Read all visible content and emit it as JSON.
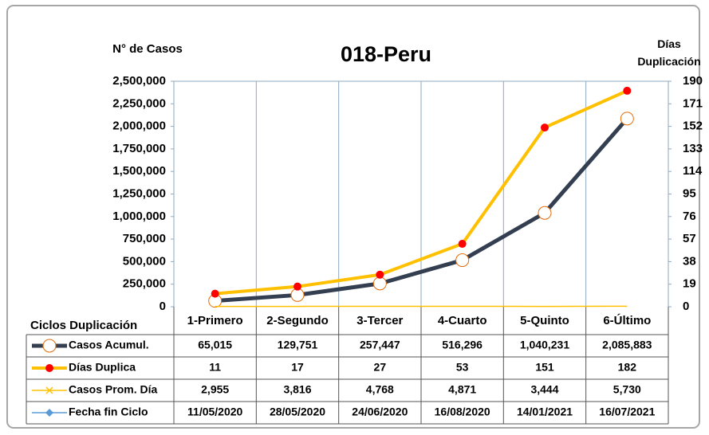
{
  "chart_data": {
    "type": "line",
    "title": "018-Peru",
    "y_label": "N° de Casos",
    "y2_label": "Días Duplicación",
    "table_label": "Ciclos Duplicación",
    "categories": [
      "1-Primero",
      "2-Segundo",
      "3-Tercer",
      "4-Cuarto",
      "5-Quinto",
      "6-Último"
    ],
    "series": [
      {
        "name": "Casos Acumul.",
        "color": "#333f50",
        "axis": "y",
        "values": [
          65015,
          129751,
          257447,
          516296,
          1040231,
          2085883
        ],
        "value_labels": [
          "65,015",
          "129,751",
          "257,447",
          "516,296",
          "1,040,231",
          "2,085,883"
        ]
      },
      {
        "name": "Días Duplica",
        "color": "#ffc000",
        "axis": "y2",
        "values": [
          11,
          17,
          27,
          53,
          151,
          182
        ]
      },
      {
        "name": "Casos Prom. Día",
        "color": "#ffc000",
        "axis": "y",
        "values": [
          2955,
          3816,
          4768,
          4871,
          3444,
          5730
        ],
        "value_labels": [
          "2,955",
          "3,816",
          "4,768",
          "4,871",
          "3,444",
          "5,730"
        ]
      },
      {
        "name": "Fecha fin Ciclo",
        "color": "#5b9bd5",
        "values": [
          "11/05/2020",
          "28/05/2020",
          "24/06/2020",
          "16/08/2020",
          "14/01/2021",
          "16/07/2021"
        ]
      }
    ],
    "ylim": [
      0,
      2500000
    ],
    "yticks": [
      0,
      {
        "value": 250000,
        "label": "250,000"
      },
      {
        "value": 500000,
        "label": "500,000"
      },
      {
        "value": 750000,
        "label": "750,000"
      },
      {
        "value": 1000000,
        "label": "1,000,000"
      },
      {
        "value": 1250000,
        "label": "1,250,000"
      },
      {
        "value": 1500000,
        "label": "1,500,000"
      },
      {
        "value": 1750000,
        "label": "1,750,000"
      },
      {
        "value": 2000000,
        "label": "2,000,000"
      },
      {
        "value": 2250000,
        "label": "2,250,000"
      },
      {
        "value": 2500000,
        "label": "2,500,000"
      }
    ],
    "y2lim": [
      0,
      190
    ],
    "y2ticks": [
      0,
      19,
      38,
      57,
      76,
      95,
      114,
      133,
      152,
      171,
      190
    ],
    "grid": false
  }
}
